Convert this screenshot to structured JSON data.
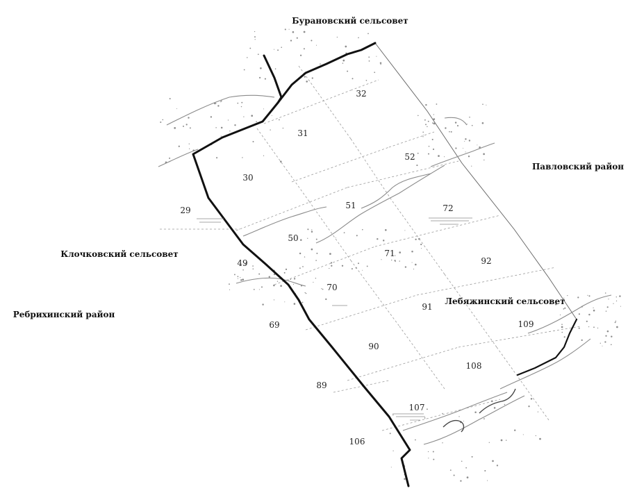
{
  "regions": {
    "buranovsky": "Бурановский сельсовет",
    "pavlovsky": "Павловский район",
    "klochkovsky": "Клочковский сельсовет",
    "rebrikhinsky": "Ребрихинский район",
    "lebyazhinsky": "Лебяжинский сельсовет"
  },
  "parcels": [
    "32",
    "31",
    "52",
    "30",
    "51",
    "72",
    "29",
    "50",
    "71",
    "92",
    "49",
    "70",
    "91",
    "109",
    "69",
    "90",
    "108",
    "89",
    "107",
    "106"
  ]
}
